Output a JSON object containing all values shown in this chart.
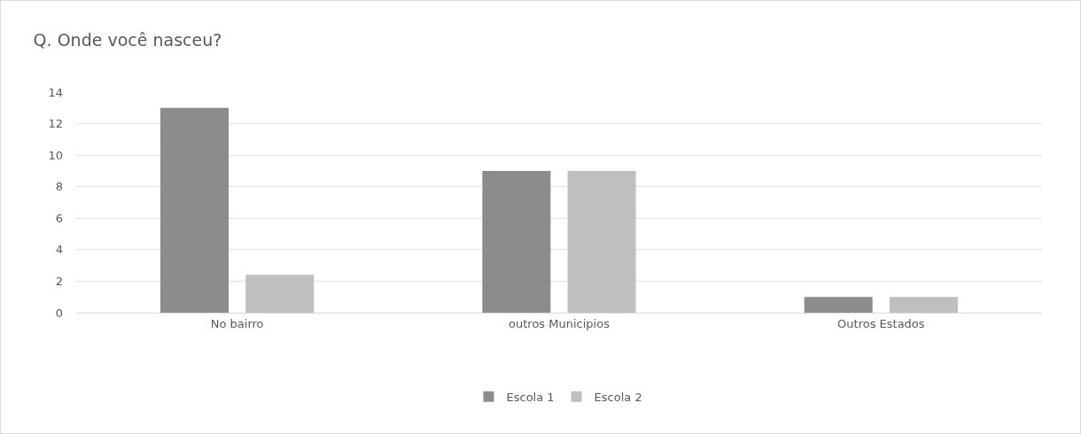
{
  "chart_data": {
    "type": "bar",
    "title": "Q. Onde você nasceu?",
    "categories": [
      "No bairro",
      "outros Municipios",
      "Outros Estados"
    ],
    "series": [
      {
        "name": "Escola 1",
        "color": "#8c8c8c",
        "values": [
          13,
          9,
          1
        ]
      },
      {
        "name": "Escola 2",
        "color": "#bfbfbf",
        "values": [
          2.4,
          9,
          1
        ]
      }
    ],
    "ylim": [
      0,
      14
    ],
    "yticks": [
      0,
      2,
      4,
      6,
      8,
      10,
      12,
      14
    ],
    "grid": "y",
    "legend": "bottom"
  }
}
